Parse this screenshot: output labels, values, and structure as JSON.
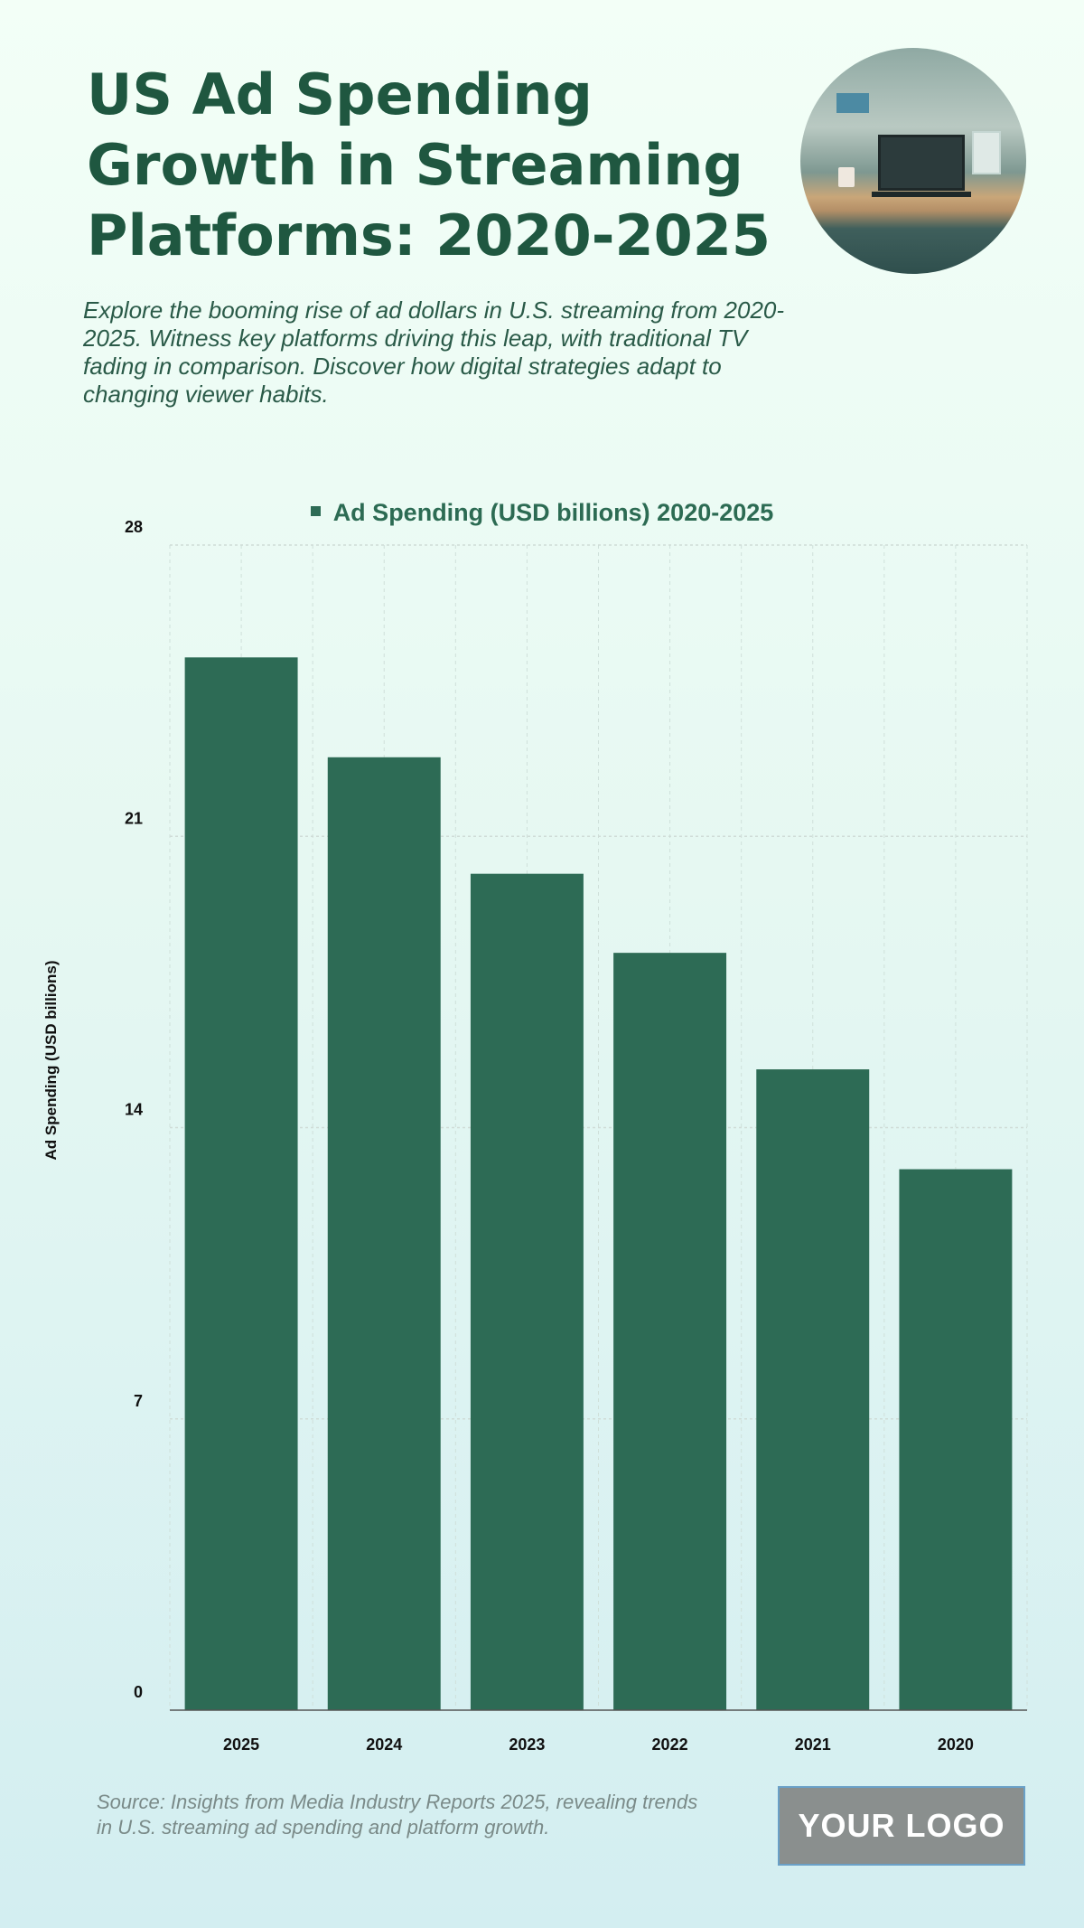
{
  "header": {
    "title": "US Ad Spending Growth in Streaming Platforms: 2020-2025",
    "subtitle": "Explore the booming rise of ad dollars in U.S. streaming from 2020-2025. Witness key platforms driving this leap, with traditional TV fading in comparison. Discover how digital strategies adapt to changing viewer habits."
  },
  "footer": {
    "source": "Source: Insights from Media Industry Reports 2025, revealing trends in U.S. streaming ad spending and platform growth.",
    "logo": "YOUR LOGO"
  },
  "colors": {
    "bar": "#2d6b55",
    "title": "#1f5740"
  },
  "chart_data": {
    "type": "bar",
    "title": "",
    "legend": [
      "Ad Spending (USD billions) 2020-2025"
    ],
    "legend_position": "top-center",
    "xlabel": "",
    "ylabel": "Ad Spending (USD billions)",
    "categories": [
      "2025",
      "2024",
      "2023",
      "2022",
      "2021",
      "2020"
    ],
    "values": [
      25.3,
      22.9,
      20.1,
      18.2,
      15.4,
      13.0
    ],
    "ylim": [
      0,
      28
    ],
    "yticks": [
      0,
      7,
      14,
      21,
      28
    ],
    "grid": true
  }
}
